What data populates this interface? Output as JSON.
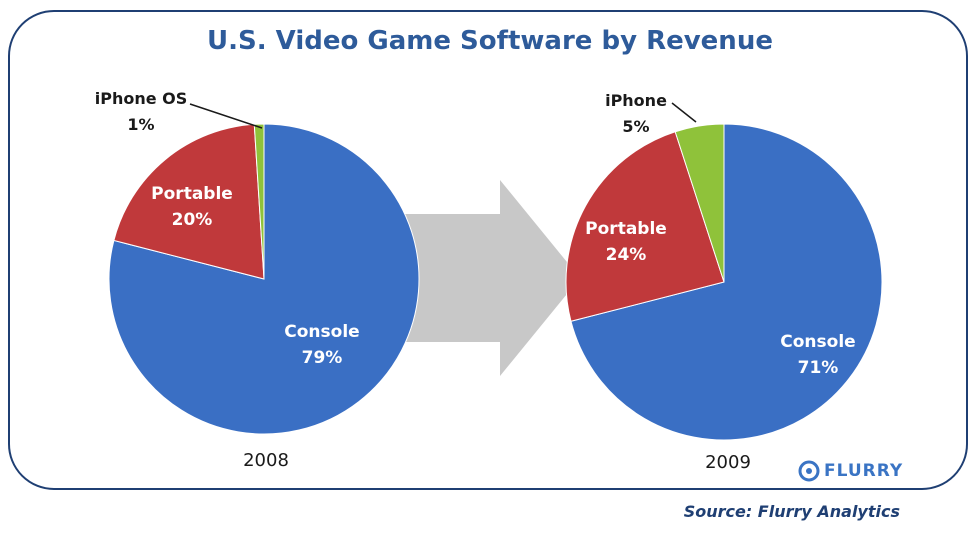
{
  "colors": {
    "frame": "#1f3f73",
    "title": "#2e5b9a",
    "console": "#3a6fc4",
    "portable": "#c0393b",
    "iphone": "#8fc23a",
    "arrow": "#c8c8c8"
  },
  "chart_data": {
    "type": "pie",
    "title": "U.S. Video Game Software by Revenue",
    "pies": [
      {
        "year_label": "2008",
        "slices": [
          {
            "key": "console",
            "label": "Console",
            "value": 79,
            "value_label": "79%"
          },
          {
            "key": "portable",
            "label": "Portable",
            "value": 20,
            "value_label": "20%"
          },
          {
            "key": "iphone",
            "label": "iPhone OS",
            "value": 1,
            "value_label": "1%"
          }
        ]
      },
      {
        "year_label": "2009",
        "slices": [
          {
            "key": "console",
            "label": "Console",
            "value": 71,
            "value_label": "71%"
          },
          {
            "key": "portable",
            "label": "Portable",
            "value": 24,
            "value_label": "24%"
          },
          {
            "key": "iphone",
            "label": "iPhone",
            "value": 5,
            "value_label": "5%"
          }
        ]
      }
    ]
  },
  "logo": {
    "text": "FLURRY"
  },
  "source": "Source: Flurry Analytics"
}
